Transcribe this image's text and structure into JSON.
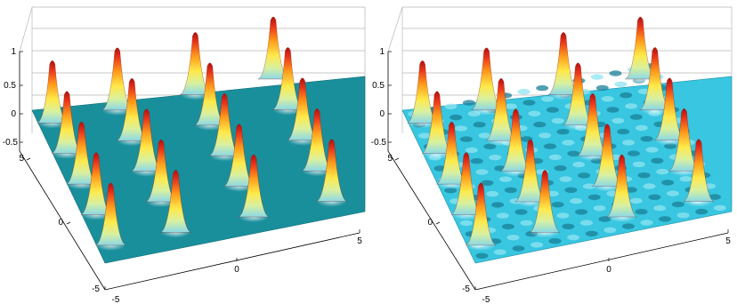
{
  "figure": {
    "panels": [
      {
        "zticks": [
          "1",
          "0.5",
          "0",
          "-0.5"
        ],
        "yticks": [
          "5",
          "0",
          "-5"
        ],
        "xticks": [
          "-5",
          "0",
          "5"
        ]
      },
      {
        "zticks": [
          "1",
          "0.5",
          "0",
          "-0.5"
        ],
        "yticks": [
          "5",
          "0",
          "-5"
        ],
        "xticks": [
          "-5",
          "0",
          "5"
        ]
      }
    ]
  },
  "chart_data": [
    {
      "type": "surface",
      "title": "",
      "xlabel": "",
      "ylabel": "",
      "zlabel": "",
      "xlim": [
        -5,
        5
      ],
      "ylim": [
        -5,
        5
      ],
      "zlim": [
        -0.5,
        1
      ],
      "grid": true,
      "colormap": "jet",
      "floor_color": "#1a8f9c",
      "peak_x": [
        -4.5,
        -2.0,
        1.0,
        4.0
      ],
      "peak_y": [
        -4.0,
        -2.0,
        0.0,
        2.0,
        4.0
      ],
      "peak_height": 1.0,
      "background_height": 0.0,
      "background_ripple": 0.0
    },
    {
      "type": "surface",
      "title": "",
      "xlabel": "",
      "ylabel": "",
      "zlabel": "",
      "xlim": [
        -5,
        5
      ],
      "ylim": [
        -5,
        5
      ],
      "zlim": [
        -0.5,
        1
      ],
      "grid": true,
      "colormap": "jet",
      "floor_color": "#38c6e0",
      "peak_x": [
        -4.5,
        -2.0,
        1.0,
        4.0
      ],
      "peak_y": [
        -4.0,
        -2.0,
        0.0,
        2.0,
        4.0
      ],
      "peak_height": 1.0,
      "background_height": 0.0,
      "background_ripple": 0.08
    }
  ]
}
